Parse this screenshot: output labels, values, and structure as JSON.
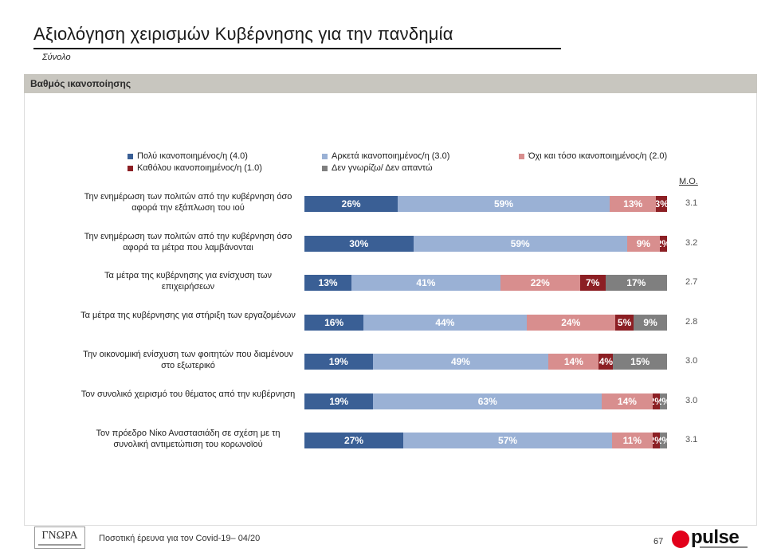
{
  "header": {
    "title": "Αξιολόγηση χειρισμών Κυβέρνησης για την πανδημία",
    "subtitle": "Σύνολο"
  },
  "band": {
    "label": "Βαθμός ικανοποίησης"
  },
  "mean_header": "Μ.Ο.",
  "colors": {
    "very": "#3a5f95",
    "fairly": "#9ab1d5",
    "notmuch": "#d88e8e",
    "notatall": "#8c1f24",
    "dk": "#7f7f7f"
  },
  "chart_data": {
    "type": "bar",
    "orientation": "horizontal-stacked-100",
    "title": "Αξιολόγηση χειρισμών Κυβέρνησης για την πανδημία",
    "subtitle": "Σύνολο",
    "xlim": [
      0,
      100
    ],
    "legend_position": "top",
    "categories": [
      "Την ενημέρωση των πολιτών από την κυβέρνηση όσο αφορά την εξάπλωση του ιού",
      "Την ενημέρωση των πολιτών από την κυβέρνηση όσο αφορά τα μέτρα που λαμβάνονται",
      "Τα μέτρα της κυβέρνησης για ενίσχυση των επιχειρήσεων",
      "Τα μέτρα της κυβέρνησης για στήριξη των εργαζομένων",
      "Την οικονομική ενίσχυση των φοιτητών που διαμένουν στο εξωτερικό",
      "Τον συνολικό χειρισμό του θέματος από την κυβέρνηση",
      "Τον πρόεδρο Νίκο Αναστασιάδη σε σχέση με τη συνολική αντιμετώπιση του κορωνοϊού"
    ],
    "series": [
      {
        "name": "Πολύ ικανοποιημένος/η (4.0)",
        "color": "#3a5f95",
        "values": [
          26,
          30,
          13,
          16,
          19,
          19,
          27
        ]
      },
      {
        "name": "Αρκετά ικανοποιημένος/η (3.0)",
        "color": "#9ab1d5",
        "values": [
          59,
          59,
          41,
          44,
          49,
          63,
          57
        ]
      },
      {
        "name": "Όχι και τόσο ικανοποιημένος/η (2.0)",
        "color": "#d88e8e",
        "values": [
          13,
          9,
          22,
          24,
          14,
          14,
          11
        ]
      },
      {
        "name": "Καθόλου ικανοποιημένος/η (1.0)",
        "color": "#8c1f24",
        "values": [
          3,
          2,
          7,
          5,
          4,
          2,
          2
        ]
      },
      {
        "name": "Δεν γνωρίζω/ Δεν απαντώ",
        "color": "#7f7f7f",
        "values": [
          0,
          0,
          17,
          9,
          15,
          2,
          2
        ]
      }
    ],
    "means": [
      "3.1",
      "3.2",
      "2.7",
      "2.8",
      "3.0",
      "3.0",
      "3.1"
    ]
  },
  "footer": {
    "logo_text": "ΓΝΩΡΑ",
    "text": "Ποσοτική έρευνα για τον Covid-19– 04/20",
    "page": "67",
    "brand": "pulse"
  }
}
